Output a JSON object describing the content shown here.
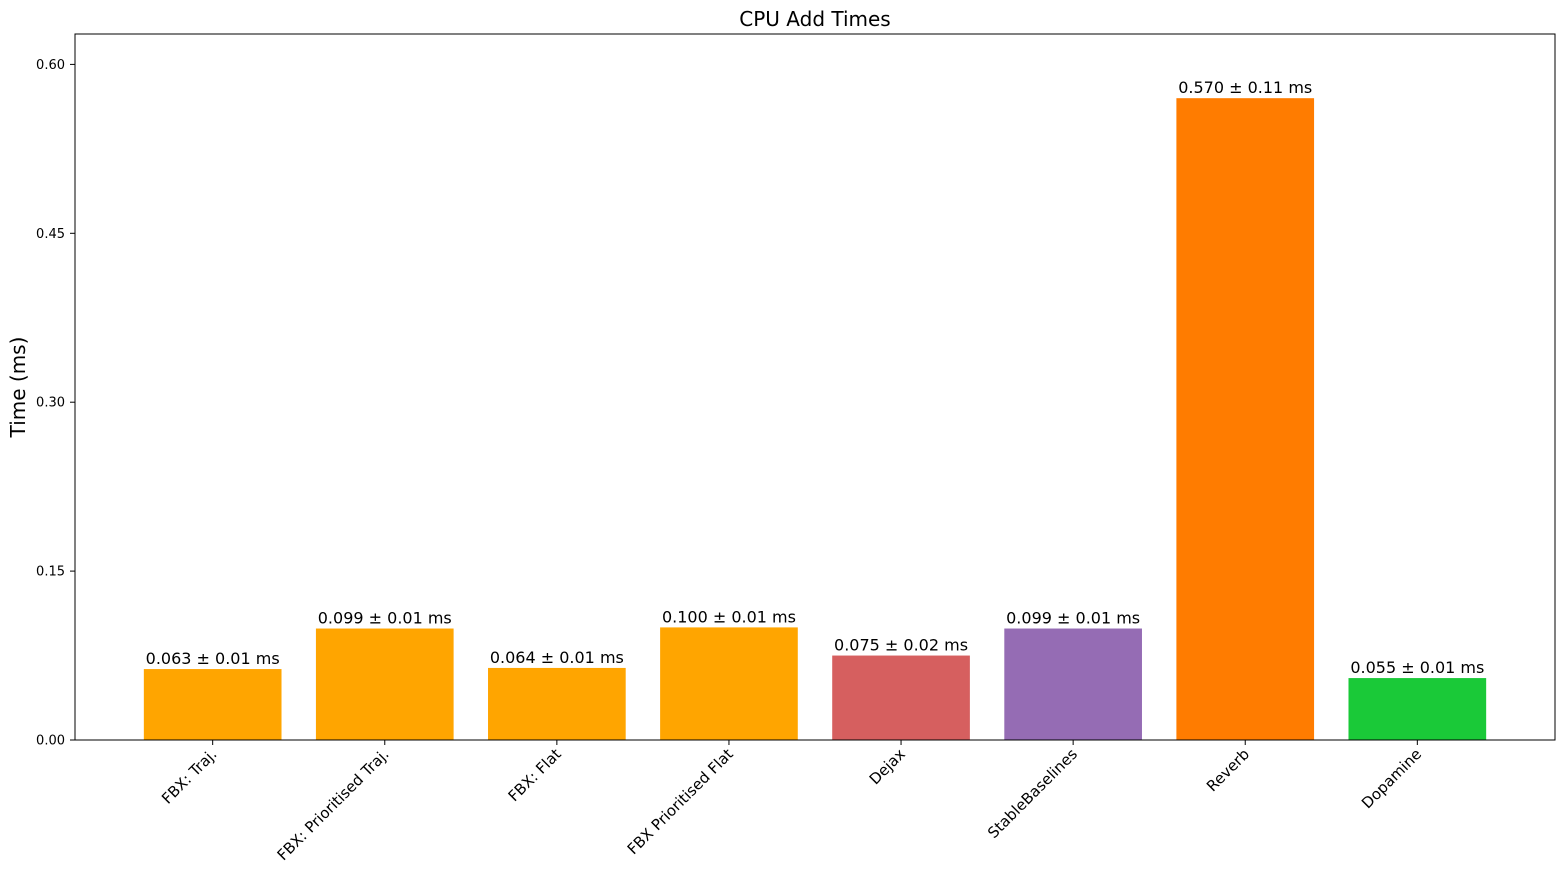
{
  "chart_data": {
    "type": "bar",
    "title": "CPU Add Times",
    "xlabel": "",
    "ylabel": "Time (ms)",
    "ylim": [
      0,
      0.627
    ],
    "yticks": [
      "0.00",
      "0.15",
      "0.30",
      "0.45",
      "0.60"
    ],
    "ytick_values": [
      0,
      0.15,
      0.3,
      0.45,
      0.6
    ],
    "grid": false,
    "categories": [
      "FBX: Traj.",
      "FBX: Prioritised Traj.",
      "FBX: Flat",
      "FBX Prioritised Flat",
      "Dejax",
      "StableBaselines",
      "Reverb",
      "Dopamine"
    ],
    "values": [
      0.063,
      0.099,
      0.064,
      0.1,
      0.075,
      0.099,
      0.57,
      0.055
    ],
    "bar_labels": [
      "0.063 ± 0.01 ms",
      "0.099 ± 0.01 ms",
      "0.064 ± 0.01 ms",
      "0.100 ± 0.01 ms",
      "0.075 ± 0.02 ms",
      "0.099 ± 0.01 ms",
      "0.570 ± 0.11 ms",
      "0.055 ± 0.01 ms"
    ],
    "colors": [
      "#ffa500",
      "#ffa500",
      "#ffa500",
      "#ffa500",
      "#d65f5f",
      "#956cb4",
      "#ff7c00",
      "#1ac938"
    ]
  }
}
